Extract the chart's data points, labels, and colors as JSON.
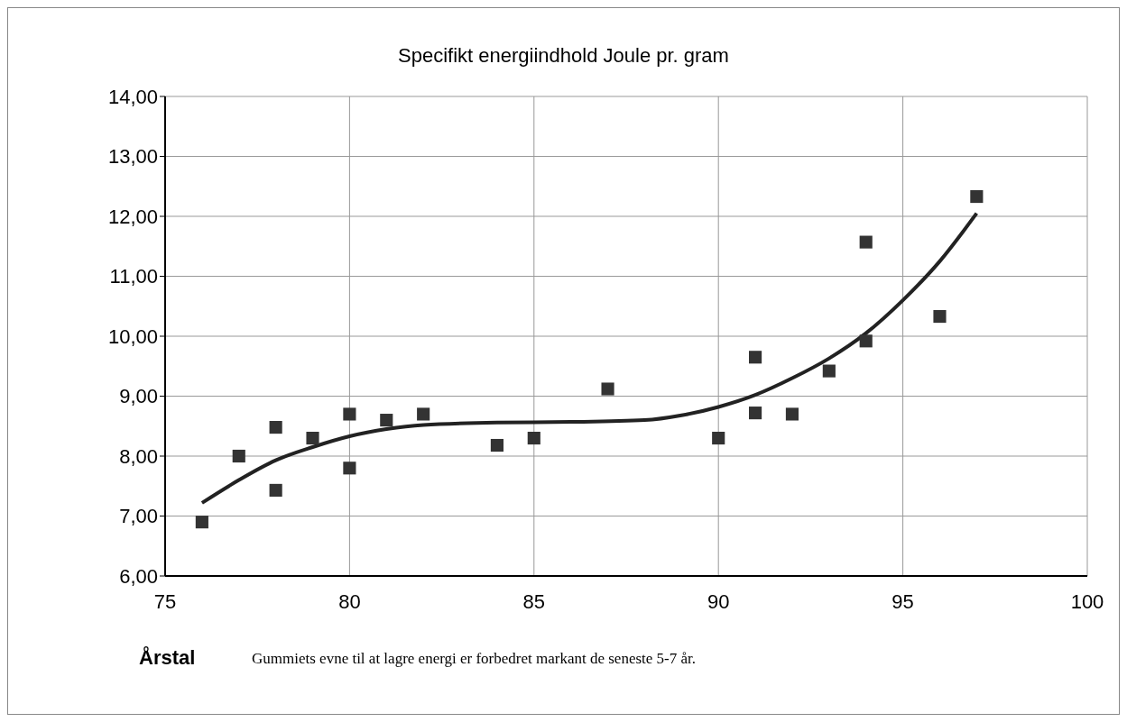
{
  "chart_data": {
    "type": "scatter",
    "title": "Specifikt energiindhold Joule pr. gram",
    "xlabel": "Årstal",
    "annotations": [
      "Gummiets evne til at lagre energi er forbedret markant de seneste 5-7 år."
    ],
    "xlim": [
      75,
      100
    ],
    "xticks": [
      75,
      80,
      85,
      90,
      95,
      100
    ],
    "ylim": [
      6,
      14
    ],
    "yticks": [
      {
        "value": 6,
        "label": "6,00"
      },
      {
        "value": 7,
        "label": "7,00"
      },
      {
        "value": 8,
        "label": "8,00"
      },
      {
        "value": 9,
        "label": "9,00"
      },
      {
        "value": 10,
        "label": "10,00"
      },
      {
        "value": 11,
        "label": "11,00"
      },
      {
        "value": 12,
        "label": "12,00"
      },
      {
        "value": 13,
        "label": "13,00"
      },
      {
        "value": 14,
        "label": "14,00"
      }
    ],
    "grid": true,
    "series": [
      {
        "marker": "square",
        "color": "#333333",
        "x": [
          76,
          77,
          78,
          78,
          79,
          80,
          80,
          81,
          82,
          84,
          85,
          87,
          90,
          91,
          91,
          92,
          93,
          94,
          94,
          96,
          97
        ],
        "values": [
          6.9,
          8.0,
          8.48,
          7.43,
          8.3,
          8.7,
          7.8,
          8.6,
          8.7,
          8.18,
          8.3,
          9.12,
          8.3,
          9.65,
          8.72,
          8.7,
          9.42,
          11.57,
          9.92,
          10.33,
          12.33
        ]
      },
      {
        "type": "line",
        "marker": "none",
        "color": "#222222",
        "line_style": "solid",
        "x": [
          76,
          77,
          78,
          79,
          80,
          81,
          82,
          84,
          86,
          88,
          89,
          90,
          91,
          92,
          93,
          94,
          95,
          96,
          97
        ],
        "values": [
          7.22,
          7.6,
          7.93,
          8.15,
          8.33,
          8.45,
          8.52,
          8.56,
          8.57,
          8.6,
          8.68,
          8.82,
          9.02,
          9.3,
          9.63,
          10.05,
          10.6,
          11.25,
          12.05
        ]
      }
    ]
  }
}
